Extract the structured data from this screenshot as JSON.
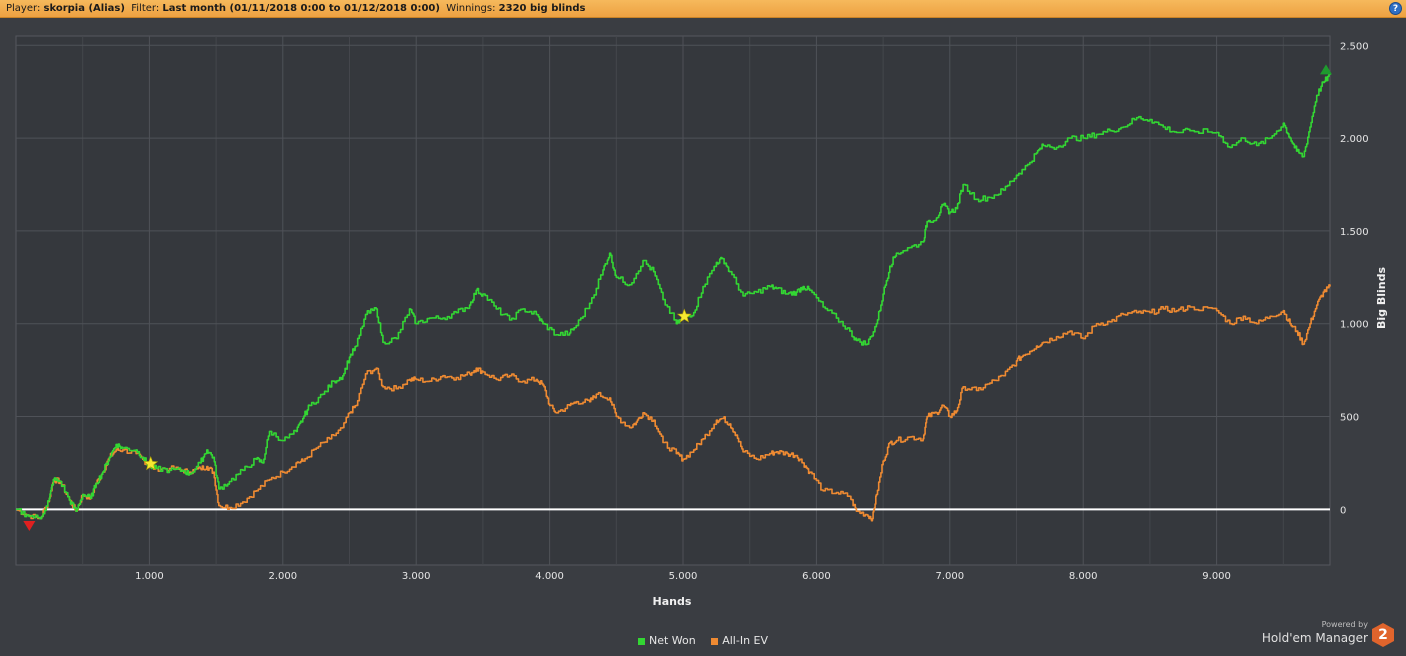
{
  "header": {
    "player_label": "Player:",
    "player": "skorpia (Alias)",
    "filter_label": "Filter:",
    "filter": "Last month (01/11/2018 0:00 to 01/12/2018 0:00)",
    "winnings_label": "Winnings:",
    "winnings": "2320 big blinds",
    "help_icon": "question-mark-icon"
  },
  "branding": {
    "powered_by": "Powered by",
    "name": "Hold'em Manager",
    "logo_text": "2"
  },
  "chart_data": {
    "type": "line",
    "xlabel": "Hands",
    "ylabel": "Big Blinds",
    "xlim": [
      0,
      9850
    ],
    "ylim": [
      -300,
      2550
    ],
    "x_ticks": [
      1000,
      2000,
      3000,
      4000,
      5000,
      6000,
      7000,
      8000,
      9000
    ],
    "x_tick_labels": [
      "1.000",
      "2.000",
      "3.000",
      "4.000",
      "5.000",
      "6.000",
      "7.000",
      "8.000",
      "9.000"
    ],
    "y_ticks": [
      0,
      500,
      1000,
      1500,
      2000,
      2500
    ],
    "y_tick_labels": [
      "0",
      "500",
      "1.000",
      "1.500",
      "2.000",
      "2.500"
    ],
    "grid": true,
    "legend_position": "bottom-center",
    "series": [
      {
        "name": "Net Won",
        "color": "#33d633",
        "points": [
          [
            0,
            0
          ],
          [
            80,
            -30
          ],
          [
            180,
            -50
          ],
          [
            250,
            60
          ],
          [
            280,
            160
          ],
          [
            330,
            150
          ],
          [
            400,
            50
          ],
          [
            450,
            -10
          ],
          [
            500,
            80
          ],
          [
            560,
            60
          ],
          [
            600,
            140
          ],
          [
            650,
            200
          ],
          [
            700,
            280
          ],
          [
            750,
            350
          ],
          [
            800,
            330
          ],
          [
            900,
            320
          ],
          [
            950,
            280
          ],
          [
            1000,
            230
          ],
          [
            1050,
            220
          ],
          [
            1150,
            210
          ],
          [
            1250,
            210
          ],
          [
            1300,
            190
          ],
          [
            1380,
            250
          ],
          [
            1430,
            320
          ],
          [
            1480,
            280
          ],
          [
            1520,
            110
          ],
          [
            1600,
            150
          ],
          [
            1700,
            210
          ],
          [
            1800,
            270
          ],
          [
            1850,
            250
          ],
          [
            1900,
            420
          ],
          [
            2000,
            370
          ],
          [
            2100,
            420
          ],
          [
            2150,
            490
          ],
          [
            2200,
            560
          ],
          [
            2300,
            620
          ],
          [
            2380,
            690
          ],
          [
            2450,
            720
          ],
          [
            2500,
            820
          ],
          [
            2550,
            880
          ],
          [
            2620,
            1050
          ],
          [
            2700,
            1080
          ],
          [
            2750,
            900
          ],
          [
            2850,
            920
          ],
          [
            2950,
            1080
          ],
          [
            3000,
            1000
          ],
          [
            3100,
            1030
          ],
          [
            3200,
            1030
          ],
          [
            3300,
            1060
          ],
          [
            3400,
            1100
          ],
          [
            3450,
            1180
          ],
          [
            3500,
            1160
          ],
          [
            3600,
            1080
          ],
          [
            3700,
            1020
          ],
          [
            3800,
            1080
          ],
          [
            3900,
            1050
          ],
          [
            3950,
            1000
          ],
          [
            4050,
            940
          ],
          [
            4150,
            950
          ],
          [
            4200,
            990
          ],
          [
            4300,
            1110
          ],
          [
            4400,
            1290
          ],
          [
            4450,
            1380
          ],
          [
            4500,
            1250
          ],
          [
            4600,
            1210
          ],
          [
            4700,
            1340
          ],
          [
            4780,
            1280
          ],
          [
            4850,
            1130
          ],
          [
            4950,
            1000
          ],
          [
            5000,
            1030
          ],
          [
            5080,
            1060
          ],
          [
            5150,
            1200
          ],
          [
            5250,
            1330
          ],
          [
            5300,
            1350
          ],
          [
            5350,
            1280
          ],
          [
            5450,
            1150
          ],
          [
            5550,
            1170
          ],
          [
            5650,
            1200
          ],
          [
            5700,
            1190
          ],
          [
            5780,
            1160
          ],
          [
            5850,
            1170
          ],
          [
            5900,
            1200
          ],
          [
            5950,
            1180
          ],
          [
            6050,
            1090
          ],
          [
            6150,
            1030
          ],
          [
            6250,
            960
          ],
          [
            6300,
            910
          ],
          [
            6380,
            890
          ],
          [
            6450,
            1000
          ],
          [
            6500,
            1160
          ],
          [
            6550,
            1310
          ],
          [
            6600,
            1380
          ],
          [
            6700,
            1410
          ],
          [
            6800,
            1440
          ],
          [
            6830,
            1550
          ],
          [
            6900,
            1570
          ],
          [
            6950,
            1640
          ],
          [
            7000,
            1600
          ],
          [
            7050,
            1620
          ],
          [
            7100,
            1750
          ],
          [
            7200,
            1670
          ],
          [
            7300,
            1680
          ],
          [
            7400,
            1720
          ],
          [
            7500,
            1800
          ],
          [
            7550,
            1830
          ],
          [
            7650,
            1920
          ],
          [
            7700,
            1960
          ],
          [
            7800,
            1950
          ],
          [
            7900,
            2000
          ],
          [
            8000,
            2000
          ],
          [
            8100,
            2020
          ],
          [
            8200,
            2040
          ],
          [
            8300,
            2060
          ],
          [
            8400,
            2110
          ],
          [
            8500,
            2100
          ],
          [
            8600,
            2060
          ],
          [
            8700,
            2030
          ],
          [
            8800,
            2040
          ],
          [
            9000,
            2030
          ],
          [
            9100,
            1950
          ],
          [
            9200,
            2000
          ],
          [
            9300,
            1960
          ],
          [
            9400,
            2000
          ],
          [
            9500,
            2080
          ],
          [
            9550,
            2000
          ],
          [
            9600,
            1930
          ],
          [
            9650,
            1900
          ],
          [
            9700,
            2060
          ],
          [
            9750,
            2230
          ],
          [
            9800,
            2300
          ],
          [
            9850,
            2340
          ]
        ]
      },
      {
        "name": "All-In EV",
        "color": "#ee8a32",
        "points": [
          [
            0,
            0
          ],
          [
            80,
            -30
          ],
          [
            180,
            -50
          ],
          [
            250,
            60
          ],
          [
            280,
            160
          ],
          [
            330,
            150
          ],
          [
            400,
            50
          ],
          [
            450,
            -10
          ],
          [
            500,
            80
          ],
          [
            560,
            60
          ],
          [
            600,
            140
          ],
          [
            650,
            200
          ],
          [
            700,
            280
          ],
          [
            750,
            320
          ],
          [
            800,
            320
          ],
          [
            900,
            300
          ],
          [
            950,
            270
          ],
          [
            1000,
            230
          ],
          [
            1050,
            220
          ],
          [
            1150,
            220
          ],
          [
            1250,
            210
          ],
          [
            1300,
            200
          ],
          [
            1380,
            220
          ],
          [
            1430,
            230
          ],
          [
            1480,
            200
          ],
          [
            1520,
            20
          ],
          [
            1600,
            10
          ],
          [
            1700,
            40
          ],
          [
            1800,
            100
          ],
          [
            1900,
            160
          ],
          [
            2000,
            200
          ],
          [
            2100,
            250
          ],
          [
            2150,
            260
          ],
          [
            2250,
            330
          ],
          [
            2350,
            380
          ],
          [
            2450,
            440
          ],
          [
            2500,
            520
          ],
          [
            2550,
            560
          ],
          [
            2620,
            730
          ],
          [
            2700,
            760
          ],
          [
            2750,
            660
          ],
          [
            2850,
            650
          ],
          [
            2950,
            700
          ],
          [
            3000,
            700
          ],
          [
            3100,
            690
          ],
          [
            3200,
            720
          ],
          [
            3300,
            710
          ],
          [
            3400,
            730
          ],
          [
            3450,
            760
          ],
          [
            3500,
            740
          ],
          [
            3600,
            700
          ],
          [
            3700,
            720
          ],
          [
            3800,
            690
          ],
          [
            3900,
            700
          ],
          [
            3950,
            670
          ],
          [
            4000,
            560
          ],
          [
            4050,
            520
          ],
          [
            4150,
            560
          ],
          [
            4200,
            580
          ],
          [
            4300,
            580
          ],
          [
            4350,
            620
          ],
          [
            4450,
            600
          ],
          [
            4500,
            500
          ],
          [
            4600,
            440
          ],
          [
            4650,
            470
          ],
          [
            4700,
            520
          ],
          [
            4780,
            480
          ],
          [
            4850,
            360
          ],
          [
            4950,
            300
          ],
          [
            5000,
            270
          ],
          [
            5080,
            320
          ],
          [
            5150,
            380
          ],
          [
            5250,
            480
          ],
          [
            5300,
            490
          ],
          [
            5350,
            460
          ],
          [
            5400,
            400
          ],
          [
            5450,
            310
          ],
          [
            5550,
            270
          ],
          [
            5650,
            300
          ],
          [
            5700,
            310
          ],
          [
            5780,
            300
          ],
          [
            5850,
            290
          ],
          [
            5900,
            250
          ],
          [
            5950,
            200
          ],
          [
            6050,
            100
          ],
          [
            6150,
            90
          ],
          [
            6250,
            70
          ],
          [
            6300,
            -10
          ],
          [
            6380,
            -30
          ],
          [
            6420,
            -50
          ],
          [
            6450,
            80
          ],
          [
            6500,
            260
          ],
          [
            6550,
            360
          ],
          [
            6600,
            370
          ],
          [
            6700,
            390
          ],
          [
            6800,
            380
          ],
          [
            6830,
            500
          ],
          [
            6900,
            520
          ],
          [
            6950,
            560
          ],
          [
            7000,
            500
          ],
          [
            7050,
            530
          ],
          [
            7100,
            660
          ],
          [
            7200,
            640
          ],
          [
            7300,
            680
          ],
          [
            7400,
            720
          ],
          [
            7500,
            800
          ],
          [
            7550,
            830
          ],
          [
            7650,
            880
          ],
          [
            7700,
            900
          ],
          [
            7800,
            930
          ],
          [
            7900,
            960
          ],
          [
            8000,
            920
          ],
          [
            8100,
            1000
          ],
          [
            8200,
            1010
          ],
          [
            8300,
            1050
          ],
          [
            8400,
            1060
          ],
          [
            8500,
            1060
          ],
          [
            8600,
            1080
          ],
          [
            8700,
            1070
          ],
          [
            8800,
            1090
          ],
          [
            9000,
            1070
          ],
          [
            9100,
            1000
          ],
          [
            9200,
            1040
          ],
          [
            9300,
            1000
          ],
          [
            9400,
            1040
          ],
          [
            9500,
            1070
          ],
          [
            9550,
            1000
          ],
          [
            9600,
            960
          ],
          [
            9650,
            890
          ],
          [
            9700,
            1000
          ],
          [
            9750,
            1100
          ],
          [
            9800,
            1170
          ],
          [
            9850,
            1200
          ]
        ]
      }
    ],
    "markers": [
      {
        "kind": "star",
        "x": 1010,
        "y": 245,
        "color": "#f6e832"
      },
      {
        "kind": "star",
        "x": 5010,
        "y": 1040,
        "color": "#f6e832"
      },
      {
        "kind": "triangle-down",
        "x": 100,
        "y": -90,
        "color": "#e02020"
      },
      {
        "kind": "triangle-up",
        "x": 9820,
        "y": 2370,
        "color": "#1e9a2e"
      }
    ]
  }
}
